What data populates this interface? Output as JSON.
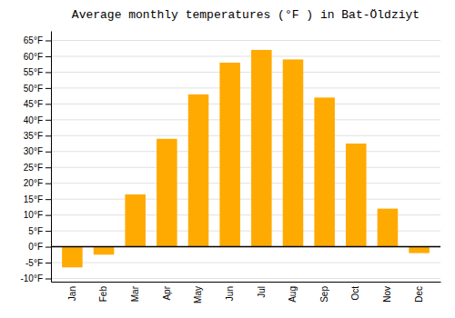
{
  "chart_data": {
    "type": "bar",
    "title": "Average monthly temperatures (°F ) in Bat-Öldziyt",
    "categories": [
      "Jan",
      "Feb",
      "Mar",
      "Apr",
      "May",
      "Jun",
      "Jul",
      "Aug",
      "Sep",
      "Oct",
      "Nov",
      "Dec"
    ],
    "values": [
      -6.5,
      -2.5,
      16.5,
      34,
      48,
      58,
      62,
      59,
      47,
      32.5,
      12,
      -2
    ],
    "color": "#FFAA00",
    "ylim": [
      -11,
      68
    ],
    "yticks": [
      {
        "value": -10,
        "label": "-10°F"
      },
      {
        "value": -5,
        "label": "-5°F"
      },
      {
        "value": 0,
        "label": "0°F"
      },
      {
        "value": 5,
        "label": "5°F"
      },
      {
        "value": 10,
        "label": "10°F"
      },
      {
        "value": 15,
        "label": "15°F"
      },
      {
        "value": 20,
        "label": "20°F"
      },
      {
        "value": 25,
        "label": "25°F"
      },
      {
        "value": 30,
        "label": "30°F"
      },
      {
        "value": 35,
        "label": "35°F"
      },
      {
        "value": 40,
        "label": "40°F"
      },
      {
        "value": 45,
        "label": "45°F"
      },
      {
        "value": 50,
        "label": "50°F"
      },
      {
        "value": 55,
        "label": "55°F"
      },
      {
        "value": 60,
        "label": "60°F"
      },
      {
        "value": 65,
        "label": "65°F"
      }
    ],
    "grid": true
  }
}
